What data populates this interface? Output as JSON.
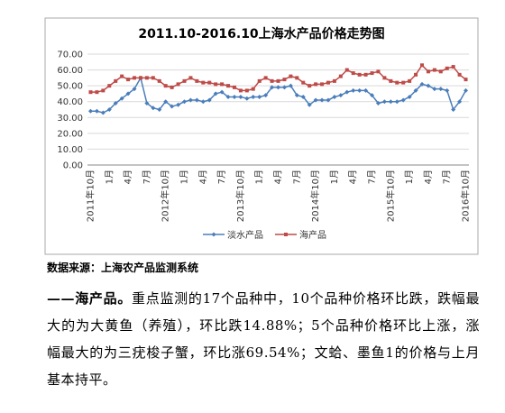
{
  "chart_data": {
    "type": "line",
    "title": "2011.10-2016.10上海水产品价格走势图",
    "categories": [
      "2011年10月",
      null,
      null,
      "1月",
      null,
      null,
      "4月",
      null,
      null,
      "7月",
      null,
      null,
      "2012年10月",
      null,
      null,
      "1月",
      null,
      null,
      "4月",
      null,
      null,
      "7月",
      null,
      null,
      "2013年10月",
      null,
      null,
      "1月",
      null,
      null,
      "4月",
      null,
      null,
      "7月",
      null,
      null,
      "2014年10月",
      null,
      null,
      "1月",
      null,
      null,
      "4月",
      null,
      null,
      "7月",
      null,
      null,
      "2015年10月",
      null,
      null,
      "1月",
      null,
      null,
      "4月",
      null,
      null,
      "7月",
      null,
      null,
      "2016年10月"
    ],
    "series": [
      {
        "name": "淡水产品",
        "color": "#4a7ebb",
        "values": [
          34,
          34,
          33,
          35,
          39,
          42,
          45,
          48,
          55,
          39,
          36,
          35,
          40,
          37,
          38,
          40,
          41,
          41,
          40,
          41,
          45,
          46,
          43,
          43,
          43,
          42,
          43,
          43,
          44,
          49,
          49,
          49,
          50,
          44,
          43,
          38,
          41,
          41,
          41,
          43,
          44,
          46,
          47,
          47,
          47,
          44,
          39,
          40,
          40,
          40,
          41,
          43,
          47,
          51,
          50,
          48,
          48,
          47,
          35,
          40,
          47
        ]
      },
      {
        "name": "海产品",
        "color": "#be4b48",
        "values": [
          46,
          46,
          47,
          50,
          53,
          56,
          54,
          55,
          55,
          55,
          55,
          53,
          50,
          49,
          51,
          53,
          55,
          53,
          52,
          52,
          51,
          51,
          50,
          49,
          47,
          47,
          48,
          53,
          55,
          53,
          53,
          54,
          56,
          55,
          52,
          50,
          51,
          51,
          52,
          53,
          56,
          60,
          58,
          57,
          57,
          58,
          59,
          55,
          53,
          52,
          52,
          53,
          57,
          63,
          59,
          60,
          59,
          61,
          62,
          57,
          54
        ]
      }
    ],
    "ylim": [
      0,
      70
    ],
    "yticks": [
      {
        "value": 0,
        "label": "0.00"
      },
      {
        "value": 10,
        "label": "10.00"
      },
      {
        "value": 20,
        "label": "20.00"
      },
      {
        "value": 30,
        "label": "30.00"
      },
      {
        "value": 40,
        "label": "40.00"
      },
      {
        "value": 50,
        "label": "50.00"
      },
      {
        "value": 60,
        "label": "60.00"
      },
      {
        "value": 70,
        "label": "70.00"
      }
    ],
    "grid": true,
    "legend": "bottom"
  },
  "source": "数据来源：上海农产品监测系统",
  "paragraph": {
    "lead": "——海产品。",
    "body": "重点监测的17个品种中，10个品种价格环比跌，跌幅最大的为大黄鱼（养殖），环比跌14.88%；5个品种价格环比上涨，涨幅最大的为三疣梭子蟹，环比涨69.54%；文蛤、墨鱼1的价格与上月基本持平。"
  }
}
